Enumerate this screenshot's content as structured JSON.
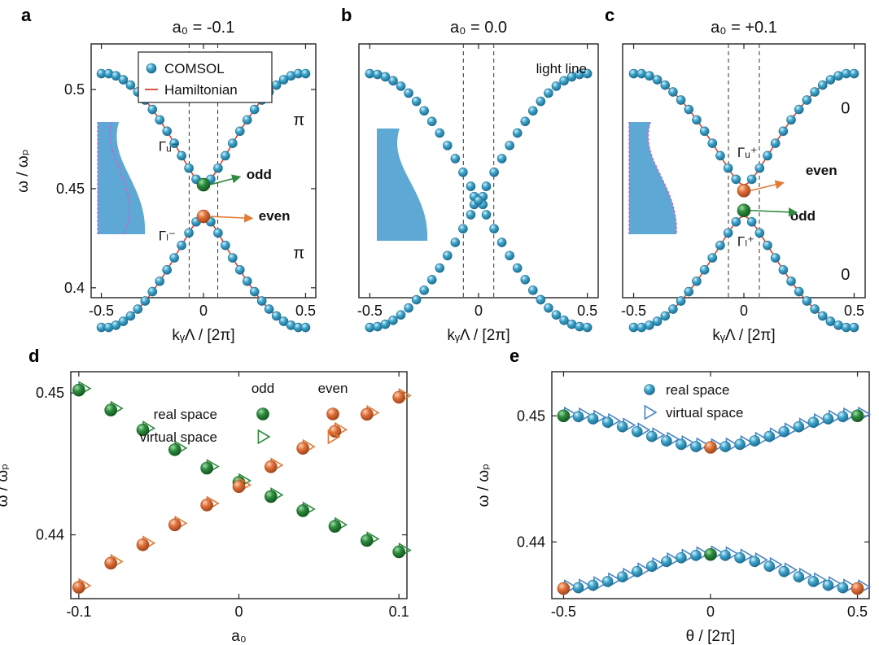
{
  "colors": {
    "blue": "#3fa6cc",
    "blue_dark": "#1f6f93",
    "green": "#2e8b3e",
    "green_dark": "#145a22",
    "orange": "#e0713a",
    "orange_dark": "#a4471b",
    "red": "#d9412f",
    "profile_fill": "#5ea8d6",
    "profile_dash": "#d45ad0",
    "label_red": "#c0392b",
    "label_green": "#2e8b3e",
    "label_orange": "#e07a35"
  },
  "chart_data": [
    {
      "id": "a",
      "type": "scatter",
      "letter": "a",
      "title": "a₀ = -0.1",
      "xlabel": "kᵧΛ / [2π]",
      "ylabel": "ω / ωₚ",
      "xlim": [
        -0.55,
        0.55
      ],
      "ylim": [
        0.395,
        0.523
      ],
      "xticks": [
        {
          "v": -0.5,
          "label": "-0.5"
        },
        {
          "v": 0,
          "label": "0"
        },
        {
          "v": 0.5,
          "label": "0.5"
        }
      ],
      "yticks": [
        {
          "v": 0.4,
          "label": "0.4"
        },
        {
          "v": 0.45,
          "label": "0.45"
        },
        {
          "v": 0.5,
          "label": "0.5"
        }
      ],
      "light_lines": [
        -0.07,
        0.07
      ],
      "band": {
        "gap_center": 0.444,
        "upper_edge": 0.452,
        "lower_edge": 0.436,
        "top": 0.508,
        "bottom": 0.408
      },
      "legend": {
        "entries": [
          {
            "label": "COMSOL",
            "kind": "ball"
          },
          {
            "label": "Hamiltonian",
            "kind": "line"
          }
        ]
      },
      "annotations": [
        {
          "text": "π",
          "x": 0.44,
          "y": 0.482,
          "color": "label_red"
        },
        {
          "text": "π",
          "x": 0.44,
          "y": 0.415,
          "color": "label_red"
        },
        {
          "text": "Γᵤ⁻",
          "x": -0.22,
          "y": 0.469,
          "color": "label_green"
        },
        {
          "text": "Γₗ⁻",
          "x": -0.22,
          "y": 0.424,
          "color": "label_orange"
        },
        {
          "text": "odd",
          "x": 0.21,
          "y": 0.455,
          "color": "label_green"
        },
        {
          "text": "even",
          "x": 0.27,
          "y": 0.434,
          "color": "label_orange"
        }
      ],
      "special_points": [
        {
          "x": 0,
          "y": 0.452,
          "color": "green"
        },
        {
          "x": 0,
          "y": 0.436,
          "color": "orange"
        }
      ]
    },
    {
      "id": "b",
      "type": "scatter",
      "letter": "b",
      "title": "a₀ = 0.0",
      "xlabel": "kᵧΛ / [2π]",
      "xlim": [
        -0.55,
        0.55
      ],
      "ylim": [
        0.395,
        0.523
      ],
      "xticks": [
        {
          "v": -0.5,
          "label": "-0.5"
        },
        {
          "v": 0,
          "label": "0"
        },
        {
          "v": 0.5,
          "label": "0.5"
        }
      ],
      "light_lines": [
        -0.07,
        0.07
      ],
      "light_line_label": "light line",
      "band": {
        "gap_center": 0.444,
        "upper_edge": 0.444,
        "lower_edge": 0.444,
        "top": 0.508,
        "bottom": 0.408
      }
    },
    {
      "id": "c",
      "type": "scatter",
      "letter": "c",
      "title": "a₀ = +0.1",
      "xlabel": "kᵧΛ / [2π]",
      "xlim": [
        -0.55,
        0.55
      ],
      "ylim": [
        0.395,
        0.523
      ],
      "xticks": [
        {
          "v": -0.5,
          "label": "-0.5"
        },
        {
          "v": 0,
          "label": "0"
        },
        {
          "v": 0.5,
          "label": "0.5"
        }
      ],
      "light_lines": [
        -0.07,
        0.07
      ],
      "band": {
        "gap_center": 0.444,
        "upper_edge": 0.452,
        "lower_edge": 0.436,
        "top": 0.508,
        "bottom": 0.408
      },
      "annotations": [
        {
          "text": "0",
          "x": 0.44,
          "y": 0.488,
          "color": "label_red"
        },
        {
          "text": "0",
          "x": 0.44,
          "y": 0.404,
          "color": "label_red"
        },
        {
          "text": "Γᵤ⁺",
          "x": -0.03,
          "y": 0.466,
          "color": "label_orange"
        },
        {
          "text": "Γₗ⁺",
          "x": -0.03,
          "y": 0.421,
          "color": "label_green"
        },
        {
          "text": "even",
          "x": 0.28,
          "y": 0.457,
          "color": "label_orange"
        },
        {
          "text": "odd",
          "x": 0.21,
          "y": 0.434,
          "color": "label_green"
        }
      ],
      "special_points": [
        {
          "x": 0,
          "y": 0.449,
          "color": "orange"
        },
        {
          "x": 0,
          "y": 0.439,
          "color": "green"
        }
      ]
    },
    {
      "id": "d",
      "type": "scatter",
      "letter": "d",
      "xlabel": "a₀",
      "ylabel": "ω / ωₚ",
      "xlim": [
        -0.105,
        0.105
      ],
      "ylim": [
        0.4355,
        0.4515
      ],
      "xticks": [
        {
          "v": -0.1,
          "label": "-0.1"
        },
        {
          "v": 0,
          "label": "0"
        },
        {
          "v": 0.1,
          "label": "0.1"
        }
      ],
      "yticks": [
        {
          "v": 0.44,
          "label": "0.44"
        },
        {
          "v": 0.45,
          "label": "0.45"
        }
      ],
      "legend": {
        "col_headers": [
          {
            "label": "odd",
            "color": "label_green"
          },
          {
            "label": "even",
            "color": "label_orange"
          }
        ],
        "rows": [
          {
            "label": "real space",
            "kind": "ball"
          },
          {
            "label": "virtual space",
            "kind": "triangle"
          }
        ]
      },
      "x": [
        -0.1,
        -0.08,
        -0.06,
        -0.04,
        -0.02,
        0,
        0.02,
        0.04,
        0.06,
        0.08,
        0.1
      ],
      "series": [
        {
          "kind": "odd",
          "values": [
            0.4502,
            0.4488,
            0.4474,
            0.446,
            0.4447,
            0.4437,
            0.4427,
            0.4417,
            0.4406,
            0.4396,
            0.4388
          ]
        },
        {
          "kind": "even",
          "values": [
            0.4363,
            0.438,
            0.4393,
            0.4407,
            0.4421,
            0.4434,
            0.4448,
            0.4461,
            0.4473,
            0.4485,
            0.4497
          ]
        }
      ]
    },
    {
      "id": "e",
      "type": "scatter",
      "letter": "e",
      "xlabel": "θ / [2π]",
      "ylabel": "ω / ωₚ",
      "xlim": [
        -0.54,
        0.54
      ],
      "ylim": [
        0.4355,
        0.4535
      ],
      "xticks": [
        {
          "v": -0.5,
          "label": "-0.5"
        },
        {
          "v": 0,
          "label": "0"
        },
        {
          "v": 0.5,
          "label": "0.5"
        }
      ],
      "yticks": [
        {
          "v": 0.44,
          "label": "0.44"
        },
        {
          "v": 0.45,
          "label": "0.45"
        }
      ],
      "legend": {
        "entries": [
          {
            "label": "real space",
            "kind": "ball"
          },
          {
            "label": "virtual space",
            "kind": "triangle"
          }
        ]
      },
      "upper": {
        "center": 0.4475,
        "edge": 0.45
      },
      "lower": {
        "center": 0.439,
        "edge": 0.4363
      },
      "ends_color_upper": "green",
      "ends_color_lower": "orange",
      "center_color_upper": "orange",
      "center_color_lower": "green"
    }
  ]
}
